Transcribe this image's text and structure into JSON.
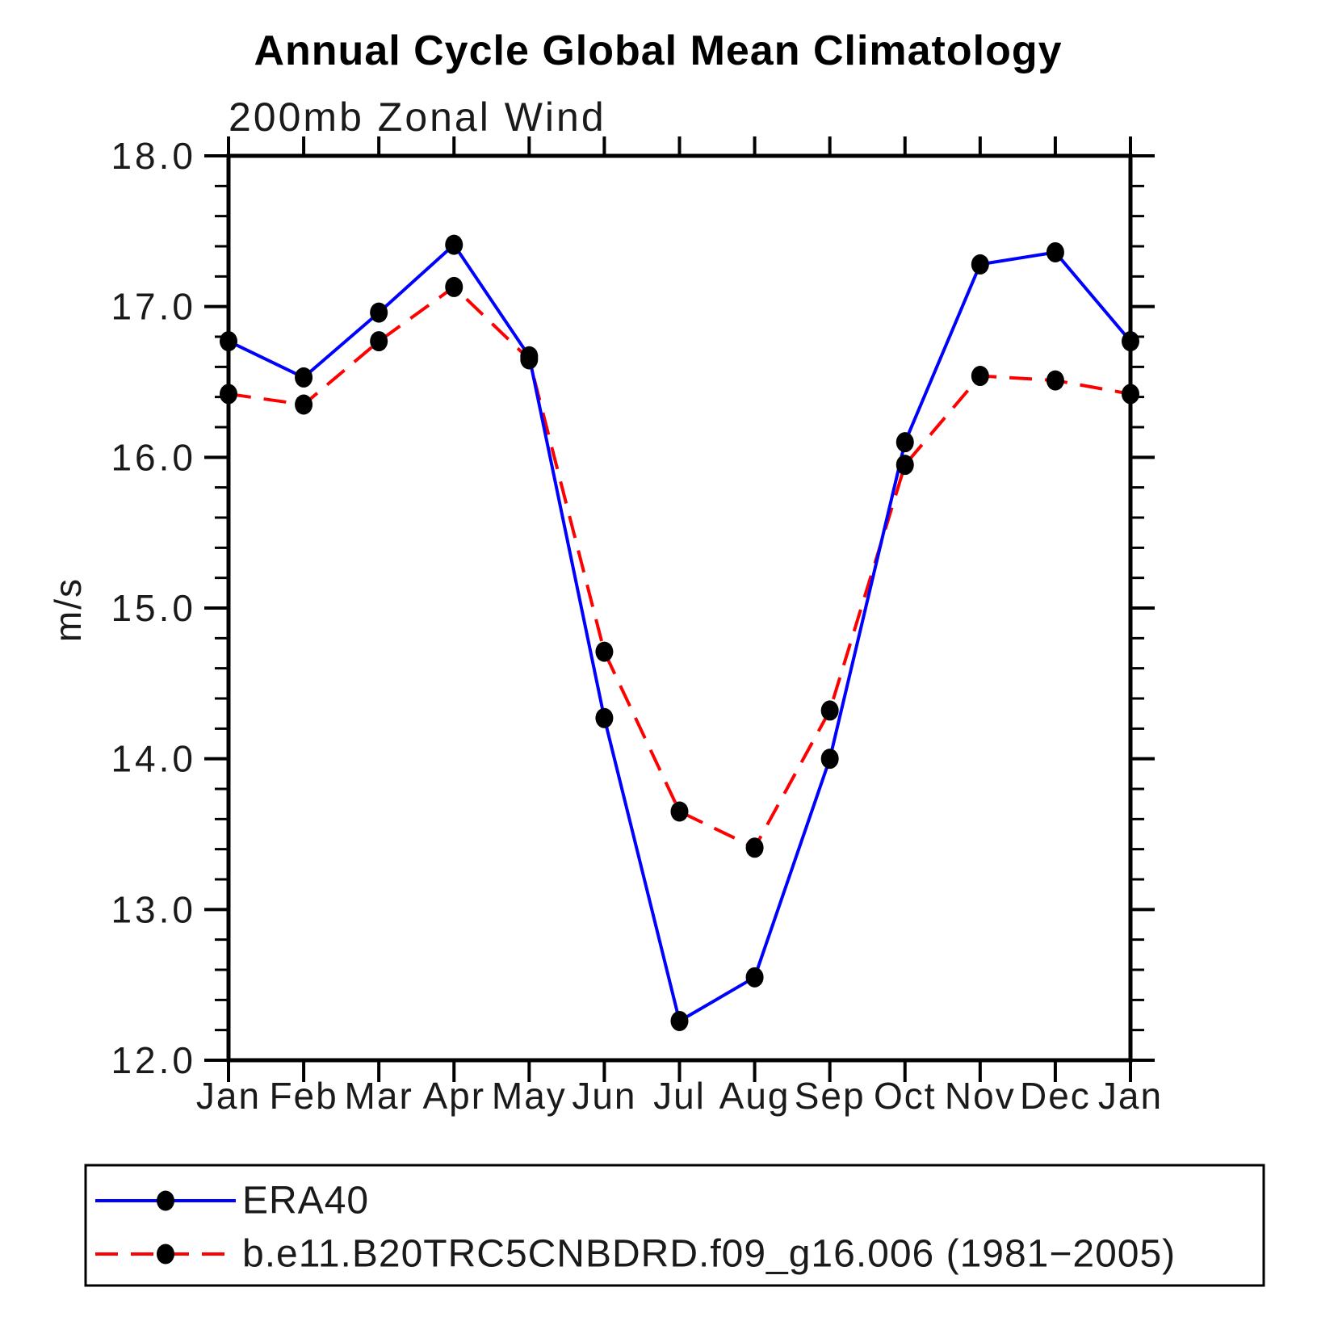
{
  "title": "Annual Cycle Global Mean Climatology",
  "subtitle": "200mb Zonal Wind",
  "y_axis_title": "m/s",
  "chart_data": {
    "type": "line",
    "x_categories": [
      "Jan",
      "Feb",
      "Mar",
      "Apr",
      "May",
      "Jun",
      "Jul",
      "Aug",
      "Sep",
      "Oct",
      "Nov",
      "Dec",
      "Jan"
    ],
    "ylim": [
      12.0,
      18.0
    ],
    "y_major_tick_labels": [
      "12.0",
      "13.0",
      "14.0",
      "15.0",
      "16.0",
      "17.0",
      "18.0"
    ],
    "y_minor_tick_step": 0.2,
    "grid": false,
    "legend_position": "bottom-box",
    "series": [
      {
        "name": "ERA40",
        "line_style": "solid",
        "color": "#0000ff",
        "marker": "filled-circle",
        "marker_color": "#000000",
        "values": [
          16.77,
          16.53,
          16.96,
          17.41,
          16.67,
          14.27,
          12.26,
          12.55,
          14.0,
          16.1,
          17.28,
          17.36,
          16.77
        ]
      },
      {
        "name": "b.e11.B20TRC5CNBDRD.f09_g16.006 (1981−2005)",
        "line_style": "dashed",
        "color": "#ff0000",
        "marker": "filled-circle",
        "marker_color": "#000000",
        "values": [
          16.42,
          16.35,
          16.77,
          17.13,
          16.65,
          14.71,
          13.65,
          13.41,
          14.32,
          15.95,
          16.54,
          16.51,
          16.42
        ]
      }
    ]
  },
  "colors": {
    "background": "#ffffff",
    "axis": "#000000",
    "era40_line": "#0000ff",
    "model_line": "#ff0000",
    "marker": "#000000"
  }
}
